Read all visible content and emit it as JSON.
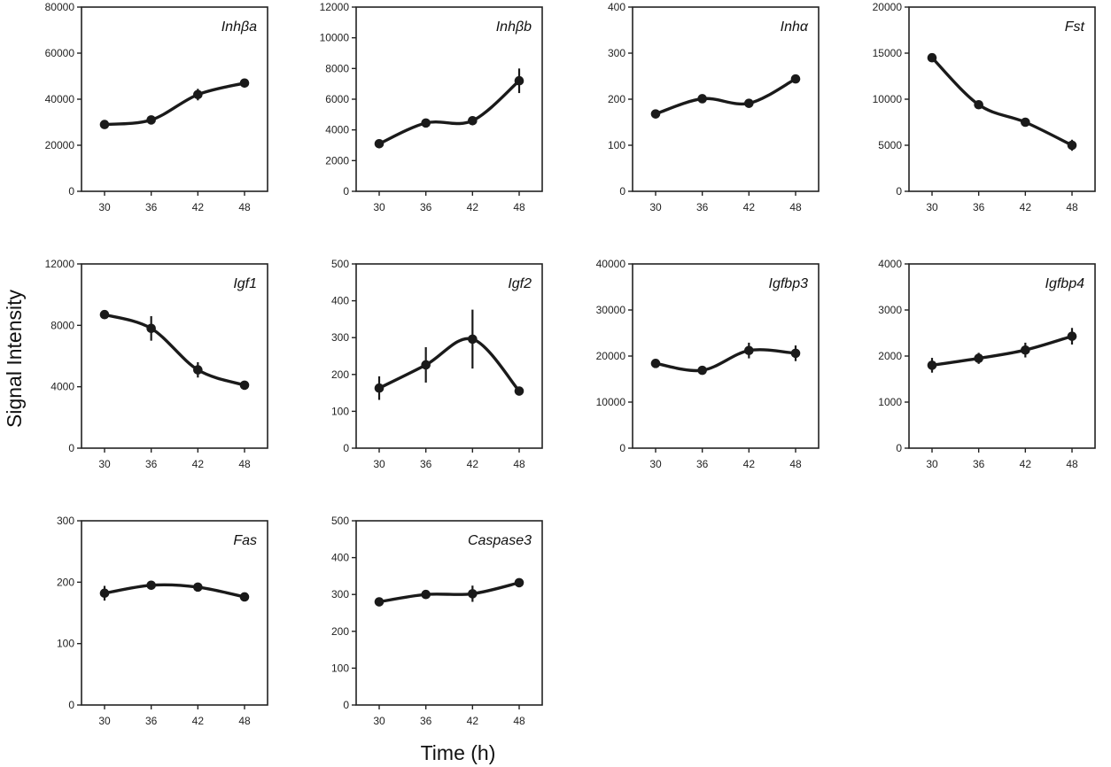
{
  "figure": {
    "ylabel": "Signal Intensity",
    "xlabel": "Time (h)"
  },
  "chart_data": [
    {
      "type": "line",
      "title": "Inhβa",
      "categories": [
        "30",
        "36",
        "42",
        "48"
      ],
      "values": [
        29000,
        31000,
        42000,
        47000
      ],
      "errors": [
        1200,
        1200,
        2500,
        1200
      ],
      "ylim": [
        0,
        80000
      ],
      "yticks": [
        0,
        20000,
        40000,
        60000,
        80000
      ]
    },
    {
      "type": "line",
      "title": "Inhβb",
      "categories": [
        "30",
        "36",
        "42",
        "48"
      ],
      "values": [
        3100,
        4450,
        4600,
        7200
      ],
      "errors": [
        200,
        200,
        250,
        800
      ],
      "ylim": [
        0,
        12000
      ],
      "yticks": [
        0,
        2000,
        4000,
        6000,
        8000,
        10000,
        12000
      ]
    },
    {
      "type": "line",
      "title": "Inhα",
      "categories": [
        "30",
        "36",
        "42",
        "48"
      ],
      "values": [
        168,
        201,
        191,
        244
      ],
      "errors": [
        6,
        6,
        6,
        6
      ],
      "ylim": [
        0,
        400
      ],
      "yticks": [
        0,
        100,
        200,
        300,
        400
      ]
    },
    {
      "type": "line",
      "title": "Fst",
      "categories": [
        "30",
        "36",
        "42",
        "48"
      ],
      "values": [
        14500,
        9400,
        7500,
        5000
      ],
      "errors": [
        300,
        300,
        300,
        600
      ],
      "ylim": [
        0,
        20000
      ],
      "yticks": [
        0,
        5000,
        10000,
        15000,
        20000
      ]
    },
    {
      "type": "line",
      "title": "Igf1",
      "categories": [
        "30",
        "36",
        "42",
        "48"
      ],
      "values": [
        8700,
        7800,
        5100,
        4100
      ],
      "errors": [
        250,
        800,
        500,
        150
      ],
      "ylim": [
        0,
        12000
      ],
      "yticks": [
        0,
        4000,
        8000,
        12000
      ]
    },
    {
      "type": "line",
      "title": "Igf2",
      "categories": [
        "30",
        "36",
        "42",
        "48"
      ],
      "values": [
        163,
        226,
        296,
        155
      ],
      "errors": [
        32,
        48,
        80,
        8
      ],
      "ylim": [
        0,
        500
      ],
      "yticks": [
        0,
        100,
        200,
        300,
        400,
        500
      ]
    },
    {
      "type": "line",
      "title": "Igfbp3",
      "categories": [
        "30",
        "36",
        "42",
        "48"
      ],
      "values": [
        18400,
        16900,
        21200,
        20600
      ],
      "errors": [
        400,
        400,
        1700,
        1700
      ],
      "ylim": [
        0,
        40000
      ],
      "yticks": [
        0,
        10000,
        20000,
        30000,
        40000
      ]
    },
    {
      "type": "line",
      "title": "Igfbp4",
      "categories": [
        "30",
        "36",
        "42",
        "48"
      ],
      "values": [
        1800,
        1950,
        2130,
        2430
      ],
      "errors": [
        160,
        120,
        160,
        180
      ],
      "ylim": [
        0,
        4000
      ],
      "yticks": [
        0,
        1000,
        2000,
        3000,
        4000
      ]
    },
    {
      "type": "line",
      "title": "Fas",
      "categories": [
        "30",
        "36",
        "42",
        "48"
      ],
      "values": [
        182,
        195,
        192,
        176
      ],
      "errors": [
        12,
        4,
        4,
        4
      ],
      "ylim": [
        0,
        300
      ],
      "yticks": [
        0,
        100,
        200,
        300
      ]
    },
    {
      "type": "line",
      "title": "Caspase3",
      "categories": [
        "30",
        "36",
        "42",
        "48"
      ],
      "values": [
        280,
        300,
        302,
        332
      ],
      "errors": [
        8,
        6,
        22,
        6
      ],
      "ylim": [
        0,
        500
      ],
      "yticks": [
        0,
        100,
        200,
        300,
        400,
        500
      ]
    }
  ]
}
